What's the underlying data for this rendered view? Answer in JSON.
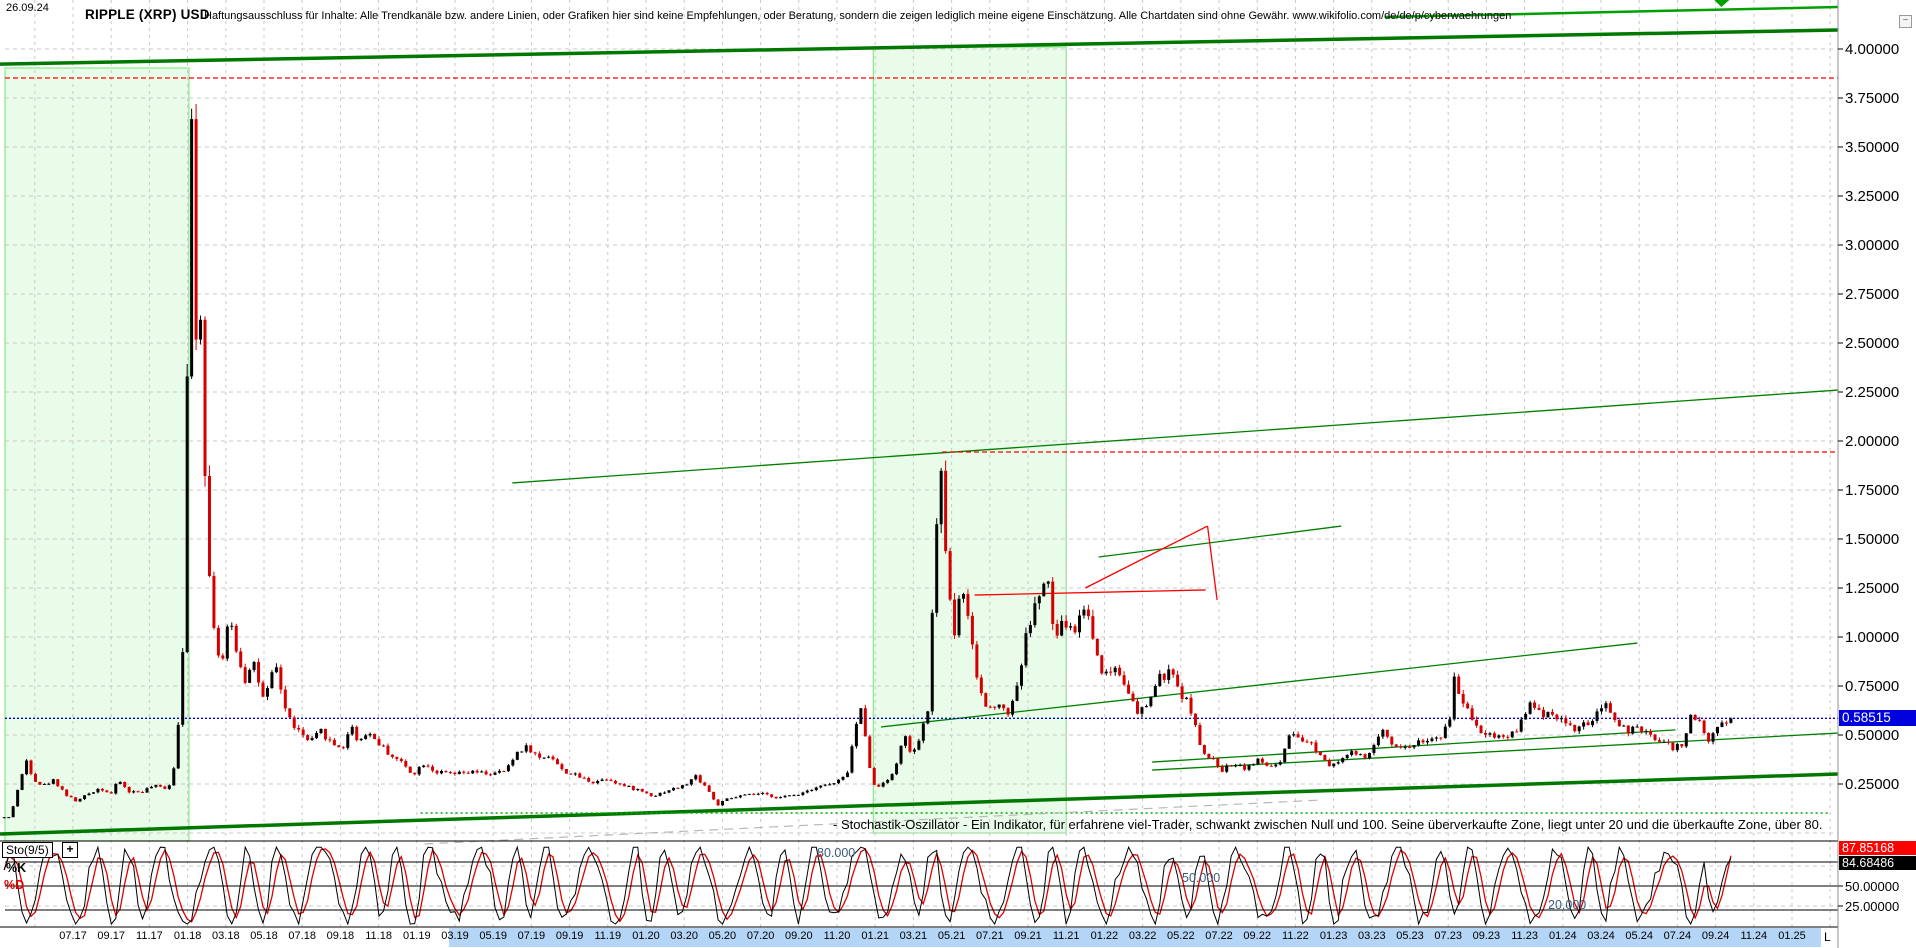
{
  "window": {
    "observation_date": "26.09.24",
    "title": "RIPPLE (XRP) USD",
    "disclaimer": "Haftungsausschluss für Inhalte: Alle Trendkanäle bzw. andere Linien, oder Grafiken hier sind keine Empfehlungen, oder Beratung, sondern die zeigen lediglich meine eigene Einschätzung. Alle Chartdaten sind ohne Gewähr.  www.wikifolio.com/de/de/p/cyberwaehrungen",
    "minimize_icon": "−"
  },
  "price_axis": {
    "tick_labels": [
      "4.00000",
      "3.75000",
      "3.50000",
      "3.25000",
      "3.00000",
      "2.75000",
      "2.50000",
      "2.25000",
      "2.00000",
      "1.75000",
      "1.50000",
      "1.25000",
      "1.00000",
      "0.75000",
      "0.50000",
      "0.25000"
    ],
    "tick_values": [
      4.0,
      3.75,
      3.5,
      3.25,
      3.0,
      2.75,
      2.5,
      2.25,
      2.0,
      1.75,
      1.5,
      1.25,
      1.0,
      0.75,
      0.5,
      0.25
    ],
    "current_price_label": "0.58515",
    "current_price_value": 0.58515
  },
  "x_axis": {
    "date_labels": [
      "07.17",
      "09.17",
      "11.17",
      "01.18",
      "03.18",
      "05.18",
      "07.18",
      "09.18",
      "11.18",
      "01.19",
      "03.19",
      "05.19",
      "07.19",
      "09.19",
      "11.19",
      "01.20",
      "03.20",
      "05.20",
      "07.20",
      "09.20",
      "11.20",
      "01.21",
      "03.21",
      "05.21",
      "07.21",
      "09.21",
      "11.21",
      "01.22",
      "03.22",
      "05.22",
      "07.22",
      "09.22",
      "11.22",
      "01.23",
      "03.23",
      "05.23",
      "07.23",
      "09.23",
      "11.23",
      "01.24",
      "03.24",
      "05.24",
      "07.24",
      "09.24",
      "11.24",
      "01.25"
    ],
    "end_label": "L"
  },
  "oscillator": {
    "indicator_label": "Sto(9/5)",
    "expand_icon": "+",
    "k_label": "%K",
    "d_label": "%D",
    "d_value_label": "87.85168",
    "k_value_label": "84.68486",
    "axis_tick_labels": [
      "50.00000",
      "25.00000"
    ],
    "axis_tick_values": [
      50,
      25
    ],
    "level_labels": [
      "80.000",
      "50.000",
      "20.000"
    ],
    "level_values": [
      80,
      50,
      20
    ],
    "description": "- Stochastik-Oszillator - Ein Indikator, für erfahrene viel-Trader, schwankt zwischen Null und 100. Seine überverkaufte Zone, liegt unter 20 und die überkaufte Zone, über 80."
  },
  "colors": {
    "up_candle": "#000000",
    "down_candle": "#d40000",
    "trend_green_thick": "#007800",
    "trend_green_thin": "#008000",
    "trend_green_bright": "#00a000",
    "alert_red": "#ff0000",
    "current_price_blue": "#0000dd",
    "band_fill": "#e9fbe9",
    "band_border": "#86e886",
    "grid": "#c9c9c9",
    "gray_trend": "#b8b8b8",
    "date_highlight": "#b5d5f6",
    "osc_k": "#000000",
    "osc_d": "#e00000",
    "level_label_color": "#3b5a78"
  },
  "chart_data": {
    "type": "candlestick",
    "title": "RIPPLE (XRP) USD",
    "timeframe": "weekly, ~2017-04 to 2024-09 (x-axis drawn to 01.25)",
    "x_unit": "months since 2017-06",
    "ylim": [
      0,
      4.25
    ],
    "grid": "dashed",
    "price_keyframes": [
      [
        -2.3,
        0.08
      ],
      [
        -1.9,
        0.22
      ],
      [
        -1.4,
        0.38
      ],
      [
        -1.1,
        0.28
      ],
      [
        -0.6,
        0.24
      ],
      [
        0,
        0.27
      ],
      [
        0.7,
        0.19
      ],
      [
        1.2,
        0.16
      ],
      [
        1.8,
        0.2
      ],
      [
        2.4,
        0.23
      ],
      [
        3,
        0.2
      ],
      [
        3.4,
        0.27
      ],
      [
        3.9,
        0.21
      ],
      [
        4.6,
        0.21
      ],
      [
        5.2,
        0.24
      ],
      [
        5.8,
        0.23
      ],
      [
        6.2,
        0.26
      ],
      [
        6.5,
        0.55
      ],
      [
        6.8,
        1.05
      ],
      [
        6.9,
        1.6
      ],
      [
        7.05,
        2.9
      ],
      [
        7.2,
        3.68
      ],
      [
        7.4,
        2.5
      ],
      [
        7.6,
        2.95
      ],
      [
        7.8,
        2.2
      ],
      [
        8.1,
        1.35
      ],
      [
        8.5,
        0.95
      ],
      [
        8.8,
        0.85
      ],
      [
        9.2,
        1.1
      ],
      [
        9.6,
        0.92
      ],
      [
        10,
        0.78
      ],
      [
        10.4,
        0.9
      ],
      [
        11,
        0.66
      ],
      [
        11.6,
        0.86
      ],
      [
        12.2,
        0.6
      ],
      [
        12.8,
        0.52
      ],
      [
        13.4,
        0.46
      ],
      [
        14,
        0.52
      ],
      [
        14.6,
        0.45
      ],
      [
        15.2,
        0.44
      ],
      [
        15.6,
        0.56
      ],
      [
        15.9,
        0.46
      ],
      [
        16.4,
        0.52
      ],
      [
        17,
        0.46
      ],
      [
        17.6,
        0.4
      ],
      [
        18.2,
        0.36
      ],
      [
        18.8,
        0.3
      ],
      [
        19.4,
        0.36
      ],
      [
        20,
        0.31
      ],
      [
        21,
        0.3
      ],
      [
        22,
        0.31
      ],
      [
        23,
        0.3
      ],
      [
        23.7,
        0.32
      ],
      [
        24.3,
        0.42
      ],
      [
        24.8,
        0.44
      ],
      [
        25.4,
        0.38
      ],
      [
        26,
        0.4
      ],
      [
        26.6,
        0.32
      ],
      [
        27.4,
        0.29
      ],
      [
        28.2,
        0.26
      ],
      [
        29,
        0.28
      ],
      [
        29.8,
        0.24
      ],
      [
        30.6,
        0.22
      ],
      [
        31.4,
        0.19
      ],
      [
        32.2,
        0.22
      ],
      [
        33,
        0.24
      ],
      [
        33.6,
        0.29
      ],
      [
        34.2,
        0.23
      ],
      [
        34.7,
        0.14
      ],
      [
        35.2,
        0.17
      ],
      [
        36,
        0.19
      ],
      [
        37,
        0.2
      ],
      [
        38,
        0.18
      ],
      [
        39,
        0.2
      ],
      [
        40,
        0.24
      ],
      [
        40.8,
        0.25
      ],
      [
        41.5,
        0.29
      ],
      [
        42,
        0.55
      ],
      [
        42.3,
        0.64
      ],
      [
        42.7,
        0.35
      ],
      [
        43,
        0.22
      ],
      [
        43.5,
        0.27
      ],
      [
        44,
        0.3
      ],
      [
        44.5,
        0.52
      ],
      [
        44.8,
        0.4
      ],
      [
        45.3,
        0.46
      ],
      [
        45.8,
        0.65
      ],
      [
        46.1,
        1.35
      ],
      [
        46.35,
        1.93
      ],
      [
        46.7,
        1.45
      ],
      [
        47.1,
        0.98
      ],
      [
        47.5,
        1.3
      ],
      [
        47.9,
        1.05
      ],
      [
        48.4,
        0.75
      ],
      [
        48.9,
        0.62
      ],
      [
        49.4,
        0.68
      ],
      [
        49.9,
        0.6
      ],
      [
        50.4,
        0.74
      ],
      [
        51,
        1.05
      ],
      [
        51.6,
        1.22
      ],
      [
        52,
        1.3
      ],
      [
        52.4,
        0.98
      ],
      [
        52.9,
        1.08
      ],
      [
        53.4,
        1.02
      ],
      [
        54,
        1.18
      ],
      [
        54.5,
        0.95
      ],
      [
        55,
        0.8
      ],
      [
        55.6,
        0.85
      ],
      [
        56.2,
        0.75
      ],
      [
        56.7,
        0.6
      ],
      [
        57.2,
        0.65
      ],
      [
        57.8,
        0.78
      ],
      [
        58.4,
        0.82
      ],
      [
        59,
        0.72
      ],
      [
        59.6,
        0.62
      ],
      [
        60.1,
        0.4
      ],
      [
        60.6,
        0.38
      ],
      [
        61.2,
        0.32
      ],
      [
        61.8,
        0.36
      ],
      [
        62.4,
        0.33
      ],
      [
        63,
        0.37
      ],
      [
        63.6,
        0.34
      ],
      [
        64.2,
        0.35
      ],
      [
        64.7,
        0.5
      ],
      [
        65.2,
        0.47
      ],
      [
        65.8,
        0.46
      ],
      [
        66.3,
        0.4
      ],
      [
        66.8,
        0.35
      ],
      [
        67.4,
        0.38
      ],
      [
        68,
        0.41
      ],
      [
        68.6,
        0.38
      ],
      [
        69.2,
        0.45
      ],
      [
        69.6,
        0.53
      ],
      [
        70.1,
        0.46
      ],
      [
        70.7,
        0.43
      ],
      [
        71.3,
        0.46
      ],
      [
        72,
        0.48
      ],
      [
        72.6,
        0.47
      ],
      [
        73.1,
        0.6
      ],
      [
        73.3,
        0.8
      ],
      [
        73.6,
        0.7
      ],
      [
        74.1,
        0.62
      ],
      [
        74.7,
        0.52
      ],
      [
        75.3,
        0.5
      ],
      [
        76,
        0.49
      ],
      [
        76.6,
        0.53
      ],
      [
        77.2,
        0.66
      ],
      [
        77.8,
        0.61
      ],
      [
        78.4,
        0.62
      ],
      [
        79,
        0.57
      ],
      [
        79.6,
        0.53
      ],
      [
        80.2,
        0.55
      ],
      [
        80.8,
        0.6
      ],
      [
        81.3,
        0.65
      ],
      [
        81.8,
        0.57
      ],
      [
        82.4,
        0.52
      ],
      [
        83,
        0.53
      ],
      [
        83.6,
        0.49
      ],
      [
        84.2,
        0.47
      ],
      [
        84.8,
        0.43
      ],
      [
        85.3,
        0.46
      ],
      [
        85.8,
        0.62
      ],
      [
        86.2,
        0.55
      ],
      [
        86.6,
        0.47
      ],
      [
        87,
        0.53
      ],
      [
        87.4,
        0.57
      ],
      [
        87.8,
        0.585
      ]
    ],
    "reference_lines": {
      "red_dashed_levels": [
        3.852,
        1.944
      ],
      "current_price_line": 0.58515,
      "green_dotted_level": 0.102
    },
    "trendlines": [
      {
        "m1": -2.82,
        "v1": 3.923,
        "m2": 93.4,
        "v2": 4.097,
        "style": "green-thick"
      },
      {
        "m1": -2.82,
        "v1": -0.005,
        "m2": 93.4,
        "v2": 0.301,
        "style": "green-thick"
      },
      {
        "m1": 69.7,
        "v1": 4.163,
        "m2": 93.4,
        "v2": 4.214,
        "style": "green-bright"
      },
      {
        "m1": 24.0,
        "v1": 1.786,
        "m2": 93.4,
        "v2": 2.26,
        "style": "green"
      },
      {
        "m1": 54.7,
        "v1": 1.408,
        "m2": 67.4,
        "v2": 1.566,
        "style": "green"
      },
      {
        "m1": 43.3,
        "v1": 0.541,
        "m2": 82.9,
        "v2": 0.969,
        "style": "green"
      },
      {
        "m1": 57.5,
        "v1": 0.321,
        "m2": 93.4,
        "v2": 0.51,
        "style": "green"
      },
      {
        "m1": 57.5,
        "v1": 0.362,
        "m2": 84.9,
        "v2": 0.526,
        "style": "green"
      },
      {
        "m1": 48.2,
        "v1": 1.214,
        "m2": 60.3,
        "v2": 1.24,
        "style": "red"
      },
      {
        "m1": 54.0,
        "v1": 1.25,
        "m2": 60.4,
        "v2": 1.566,
        "style": "red"
      },
      {
        "m1": 60.4,
        "v1": 1.566,
        "m2": 60.9,
        "v2": 1.189,
        "style": "red"
      },
      {
        "m1": -2.56,
        "v1": 3.852,
        "m2": 93.4,
        "v2": 3.852,
        "style": "red-dashed"
      },
      {
        "m1": 46.5,
        "v1": 1.944,
        "m2": 93.4,
        "v2": 1.944,
        "style": "red-dashed"
      },
      {
        "m1": 19.2,
        "v1": 0.102,
        "m2": 93.0,
        "v2": 0.102,
        "style": "green-dotted"
      },
      {
        "m1": 19.4,
        "v1": -0.056,
        "m2": 66.3,
        "v2": 0.168,
        "style": "gray-dashed"
      },
      {
        "m1": -2.56,
        "v1": 0.58515,
        "m2": 93.4,
        "v2": 0.58515,
        "style": "blue-dotted"
      }
    ],
    "marker": {
      "shape": "triangle-down",
      "m": 87.3,
      "v": 4.24
    },
    "highlight_bands": [
      {
        "from_m": -2.56,
        "to_m": 7.07,
        "note": "2017 run-up / Jan 2018 top"
      },
      {
        "from_m": 42.9,
        "to_m": 53.0,
        "note": "2021 bull phase"
      }
    ],
    "stochastic": {
      "indicator": "Sto(9/5)",
      "k": 84.68486,
      "d": 87.85168,
      "overbought": 80,
      "midline": 50,
      "oversold": 20,
      "range": [
        0,
        100
      ]
    }
  }
}
